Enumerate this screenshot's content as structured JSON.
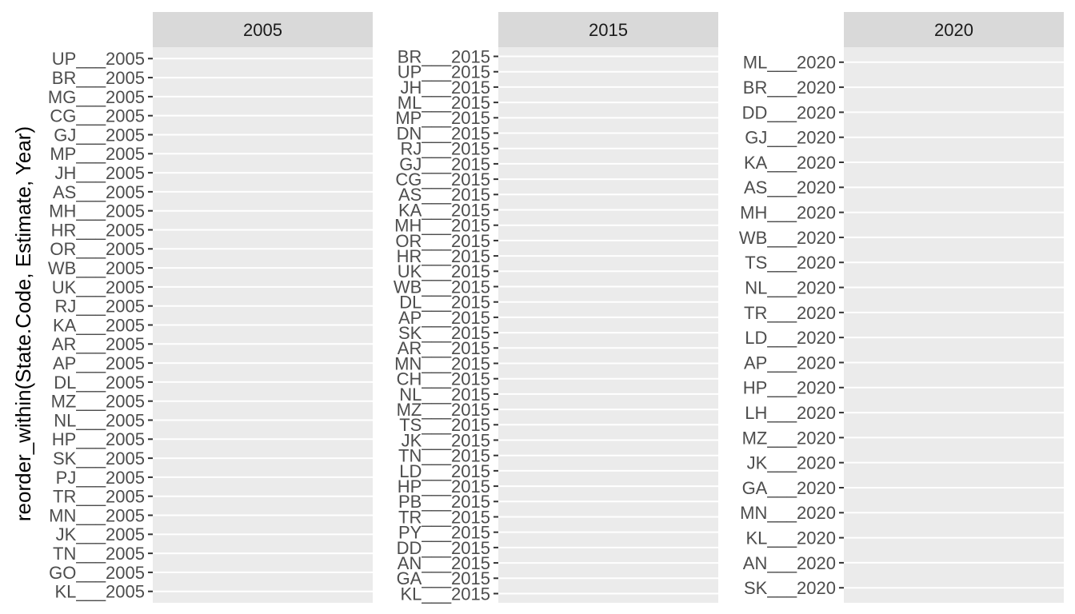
{
  "chart_data": {
    "type": "bar",
    "ylabel": "reorder_within(State.Code, Estimate, Year)",
    "xlabel": "",
    "grid": true,
    "panels": [
      {
        "strip": "2005",
        "categories": [
          "UP___2005",
          "BR___2005",
          "MG___2005",
          "CG___2005",
          "GJ___2005",
          "MP___2005",
          "JH___2005",
          "AS___2005",
          "MH___2005",
          "HR___2005",
          "OR___2005",
          "WB___2005",
          "UK___2005",
          "RJ___2005",
          "KA___2005",
          "AR___2005",
          "AP___2005",
          "DL___2005",
          "MZ___2005",
          "NL___2005",
          "HP___2005",
          "SK___2005",
          "PJ___2005",
          "TR___2005",
          "MN___2005",
          "JK___2005",
          "TN___2005",
          "GO___2005",
          "KL___2005"
        ]
      },
      {
        "strip": "2015",
        "categories": [
          "BR___2015",
          "UP___2015",
          "JH___2015",
          "ML___2015",
          "MP___2015",
          "DN___2015",
          "RJ___2015",
          "GJ___2015",
          "CG___2015",
          "AS___2015",
          "KA___2015",
          "MH___2015",
          "OR___2015",
          "HR___2015",
          "UK___2015",
          "WB___2015",
          "DL___2015",
          "AP___2015",
          "SK___2015",
          "AR___2015",
          "MN___2015",
          "CH___2015",
          "NL___2015",
          "MZ___2015",
          "TS___2015",
          "JK___2015",
          "TN___2015",
          "LD___2015",
          "HP___2015",
          "PB___2015",
          "TR___2015",
          "PY___2015",
          "DD___2015",
          "AN___2015",
          "GA___2015",
          "KL___2015"
        ]
      },
      {
        "strip": "2020",
        "categories": [
          "ML___2020",
          "BR___2020",
          "DD___2020",
          "GJ___2020",
          "KA___2020",
          "AS___2020",
          "MH___2020",
          "WB___2020",
          "TS___2020",
          "NL___2020",
          "TR___2020",
          "LD___2020",
          "AP___2020",
          "HP___2020",
          "LH___2020",
          "MZ___2020",
          "JK___2020",
          "GA___2020",
          "MN___2020",
          "KL___2020",
          "AN___2020",
          "SK___2020"
        ]
      }
    ],
    "colors": {
      "panel_background": "#EBEBEB",
      "strip_background": "#D9D9D9",
      "gridline": "#FFFFFF",
      "tick_mark": "#333333",
      "tick_label": "#4D4D4D",
      "strip_text": "#1A1A1A"
    }
  }
}
